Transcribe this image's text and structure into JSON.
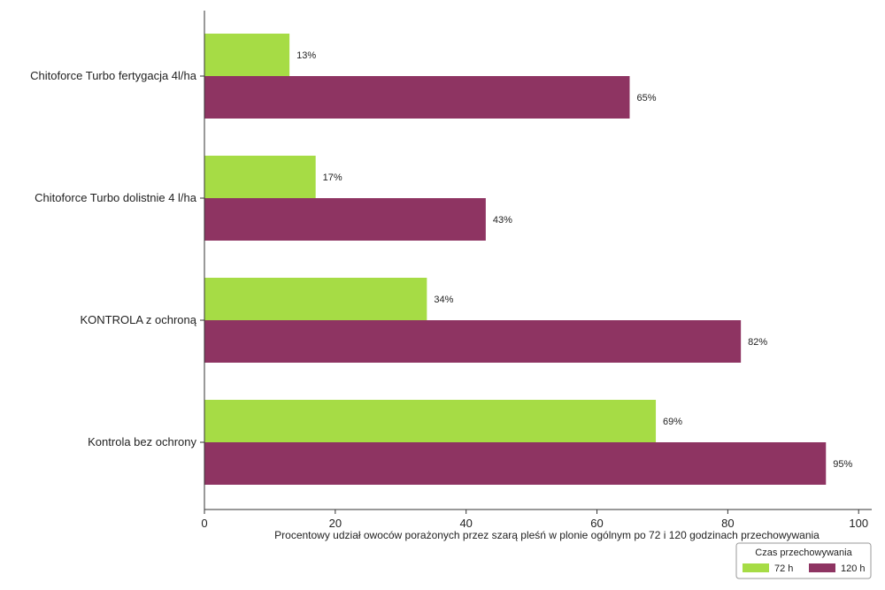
{
  "chart_data": {
    "type": "bar",
    "orientation": "horizontal",
    "categories": [
      "Chitoforce Turbo fertygacja 4l/ha",
      "Chitoforce Turbo dolistnie 4 l/ha",
      "KONTROLA z ochroną",
      "Kontrola bez ochrony"
    ],
    "series": [
      {
        "name": "72 h",
        "values": [
          13,
          17,
          34,
          69
        ],
        "labels": [
          "13%",
          "17%",
          "34%",
          "69%"
        ],
        "color": "#a6dc45"
      },
      {
        "name": "120 h",
        "values": [
          65,
          43,
          82,
          95
        ],
        "labels": [
          "65%",
          "43%",
          "82%",
          "95%"
        ],
        "color": "#8e3462"
      }
    ],
    "xlabel": "Procentowy udział owoców porażonych przez szarą pleśń w plonie ogólnym po 72 i 120 godzinach przechowywania",
    "xlim": [
      0,
      102
    ],
    "xticks": [
      0,
      20,
      40,
      60,
      80,
      100
    ],
    "grid": false,
    "legend": {
      "title": "Czas przechowywania",
      "position": "bottom-right"
    }
  }
}
